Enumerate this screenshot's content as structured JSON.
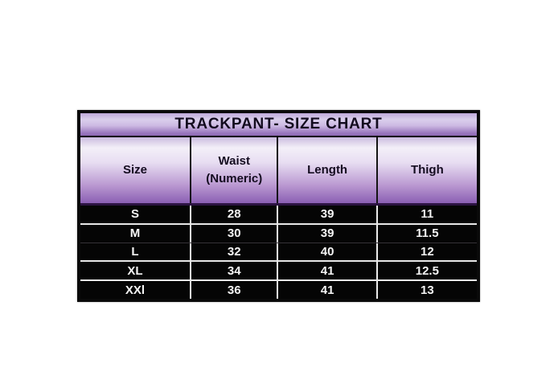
{
  "chart_data": {
    "type": "table",
    "title": "TRACKPANT- SIZE CHART",
    "columns": [
      "Size",
      "Waist\n(Numeric)",
      "Length",
      "Thigh"
    ],
    "rows": [
      [
        "S",
        "28",
        "39",
        "11"
      ],
      [
        "M",
        "30",
        "39",
        "11.5"
      ],
      [
        "L",
        "32",
        "40",
        "12"
      ],
      [
        "XL",
        "34",
        "41",
        "12.5"
      ],
      [
        "XXl",
        "36",
        "41",
        "13"
      ]
    ],
    "layout_hints": {
      "title_background": "purple vertical gradient",
      "header_background": "purple vertical gradient, light top to dark bottom",
      "body_background": "black with white text",
      "grid": "black dividers in header, white dividers in body"
    },
    "colors": {
      "purple_light": "#f3eff8",
      "purple_mid": "#bb9ad2",
      "purple_dark": "#8a5fb3",
      "body_bg": "#050505",
      "body_text": "#f5f5f5",
      "border": "#0a0a0a",
      "page_bg": "#ffffff"
    }
  }
}
